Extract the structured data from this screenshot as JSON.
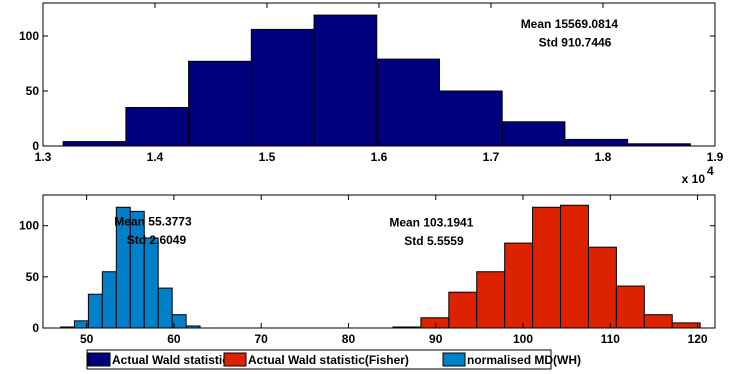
{
  "chart_data": [
    {
      "type": "bar",
      "title": "",
      "xlabel": "",
      "ylabel": "",
      "xlim": [
        13000,
        19000
      ],
      "ylim": [
        0,
        130
      ],
      "xticks": [
        13000,
        14000,
        15000,
        16000,
        17000,
        18000,
        19000
      ],
      "xtick_labels": [
        "1.3",
        "1.4",
        "1.5",
        "1.6",
        "1.7",
        "1.8",
        "1.9"
      ],
      "yticks": [
        0,
        50,
        100
      ],
      "x_multiplier": "x 10",
      "x_multiplier_exp": "4",
      "grid": false,
      "series": [
        {
          "color": "#00007f",
          "bin_edges": [
            13180,
            13740,
            14300,
            14860,
            15420,
            15980,
            16540,
            17100,
            17660,
            18220,
            18780
          ],
          "values": [
            4,
            35,
            77,
            106,
            119,
            79,
            50,
            22,
            6,
            2
          ]
        }
      ],
      "annotations": [
        {
          "text": "Mean 15569.0814",
          "x": 17700,
          "y": 111
        },
        {
          "text": "Std 910.7446",
          "x": 17750,
          "y": 94
        }
      ]
    },
    {
      "type": "bar",
      "title": "",
      "xlabel": "",
      "ylabel": "",
      "xlim": [
        45,
        122
      ],
      "ylim": [
        0,
        130
      ],
      "xticks": [
        50,
        60,
        70,
        80,
        90,
        100,
        110,
        120
      ],
      "xtick_labels": [
        "50",
        "60",
        "70",
        "80",
        "90",
        "100",
        "110",
        "120"
      ],
      "yticks": [
        0,
        50,
        100
      ],
      "grid": false,
      "series": [
        {
          "color": "#0080c8",
          "bin_edges": [
            47,
            48.6,
            50.2,
            51.8,
            53.4,
            55.0,
            56.6,
            58.2,
            59.8,
            61.4,
            63.0
          ],
          "values": [
            1,
            7,
            33,
            55,
            118,
            114,
            88,
            39,
            13,
            2
          ]
        },
        {
          "color": "#dd2200",
          "bin_edges": [
            85.1,
            88.3,
            91.5,
            94.7,
            97.9,
            101.1,
            104.3,
            107.5,
            110.7,
            113.9,
            117.1,
            120.3
          ],
          "values": [
            1,
            10,
            35,
            55,
            83,
            118,
            120,
            79,
            41,
            13,
            5
          ]
        }
      ],
      "annotations": [
        {
          "text": "Mean 55.3773",
          "x": 57.6,
          "y": 104
        },
        {
          "text": "Std 2.6049",
          "x": 58.0,
          "y": 86
        },
        {
          "text": "Mean 103.1941",
          "x": 89.5,
          "y": 103
        },
        {
          "text": "Std 5.5559",
          "x": 89.8,
          "y": 85
        }
      ]
    }
  ],
  "legend": {
    "placement": "bottom",
    "items": [
      {
        "label": "Actual Wald statistic",
        "color": "#00007f"
      },
      {
        "label": "Actual Wald statistic(Fisher)",
        "color": "#dd2200"
      },
      {
        "label": "normalised MD(WH)",
        "color": "#0080c8"
      }
    ]
  }
}
